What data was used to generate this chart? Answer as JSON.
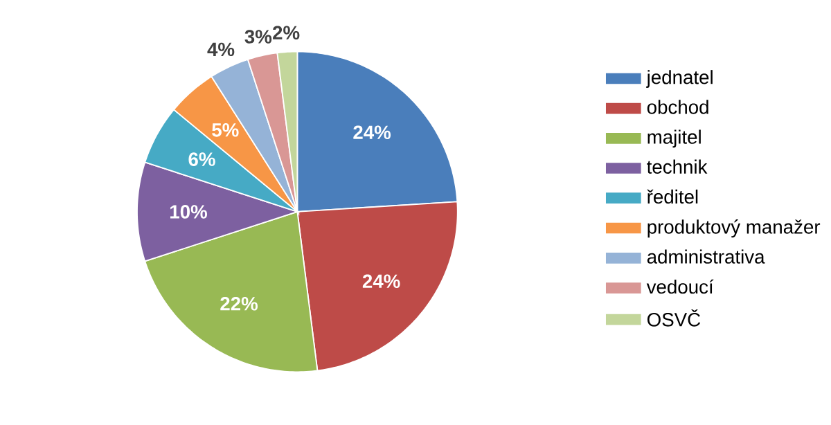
{
  "chart_data": {
    "type": "pie",
    "categories": [
      "jednatel",
      "obchod",
      "majitel",
      "technik",
      "ředitel",
      "produktový manažer",
      "administrativa",
      "vedoucí",
      "OSVČ"
    ],
    "values": [
      24,
      24,
      22,
      10,
      6,
      5,
      4,
      3,
      2
    ],
    "value_labels": [
      "24%",
      "24%",
      "22%",
      "10%",
      "6%",
      "5%",
      "4%",
      "3%",
      "2%"
    ],
    "colors": [
      "#4a7ebb",
      "#be4b48",
      "#98b954",
      "#7d60a0",
      "#46aac5",
      "#f79646",
      "#95b3d7",
      "#d99795",
      "#c3d69b"
    ],
    "legend": "right"
  }
}
